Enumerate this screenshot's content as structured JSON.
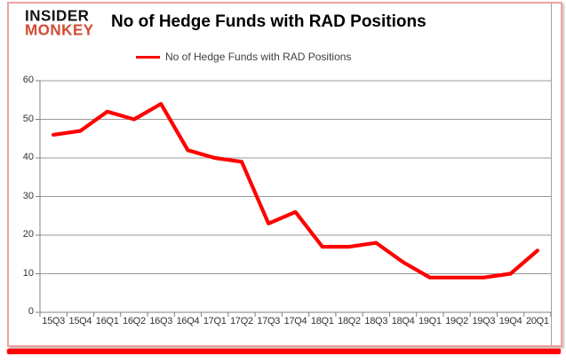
{
  "brand": {
    "line1": "INSIDER",
    "line2": "MONKEY",
    "accent_color": "#d14a31"
  },
  "title": "No of Hedge Funds with RAD Positions",
  "legend": {
    "label": "No of Hedge Funds with RAD Positions",
    "color": "#fe0000"
  },
  "colors": {
    "line": "#fe0100",
    "gridline": "#999999",
    "axis": "#808080",
    "frame_border": "#eaa3a3",
    "bottom_bar": "#fe0202",
    "label_text": "#333333"
  },
  "chart_data": {
    "type": "line",
    "title": "No of Hedge Funds with RAD Positions",
    "categories": [
      "15Q3",
      "15Q4",
      "16Q1",
      "16Q2",
      "16Q3",
      "16Q4",
      "17Q1",
      "17Q2",
      "17Q3",
      "17Q4",
      "18Q1",
      "18Q2",
      "18Q3",
      "18Q4",
      "19Q1",
      "19Q2",
      "19Q3",
      "19Q4",
      "20Q1"
    ],
    "series": [
      {
        "name": "No of Hedge Funds with RAD Positions",
        "color": "#fe0100",
        "values": [
          46,
          47,
          52,
          50,
          54,
          42,
          40,
          39,
          23,
          26,
          17,
          17,
          18,
          13,
          9,
          9,
          9,
          10,
          16
        ]
      }
    ],
    "xlabel": "",
    "ylabel": "",
    "ylim": [
      0,
      60
    ],
    "ytick_interval": 10,
    "yticks": [
      0,
      10,
      20,
      30,
      40,
      50,
      60
    ],
    "grid": true,
    "legend_position": "top"
  }
}
